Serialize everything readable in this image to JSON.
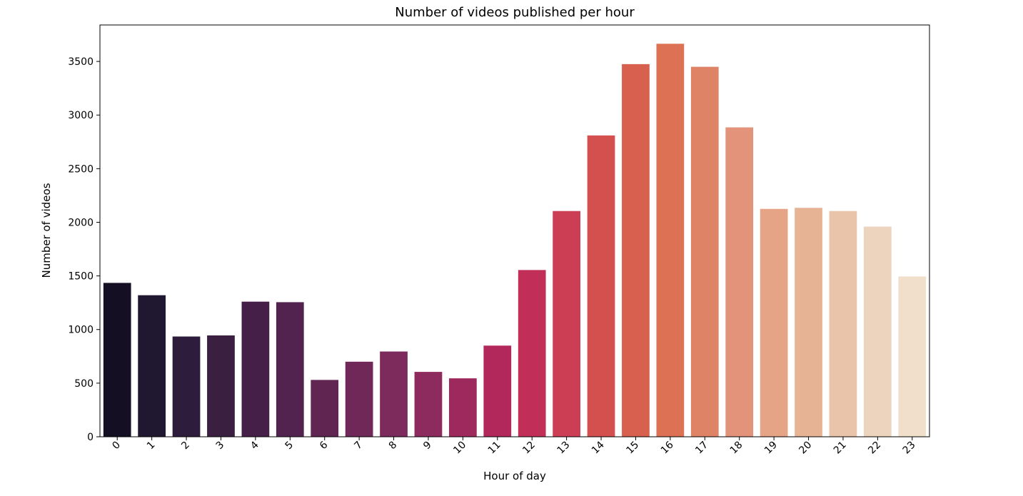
{
  "chart_data": {
    "type": "bar",
    "title": "Number of videos published per hour",
    "xlabel": "Hour of day",
    "ylabel": "Number of videos",
    "categories": [
      "0",
      "1",
      "2",
      "3",
      "4",
      "5",
      "6",
      "7",
      "8",
      "9",
      "10",
      "11",
      "12",
      "13",
      "14",
      "15",
      "16",
      "17",
      "18",
      "19",
      "20",
      "21",
      "22",
      "23"
    ],
    "values": [
      1435,
      1320,
      935,
      945,
      1260,
      1255,
      530,
      700,
      795,
      605,
      545,
      850,
      1555,
      2105,
      2810,
      3475,
      3665,
      3450,
      2885,
      2125,
      2135,
      2105,
      1960,
      1495
    ],
    "ylim": [
      0,
      3840
    ],
    "yticks": [
      0,
      500,
      1000,
      1500,
      2000,
      2500,
      3000,
      3500
    ],
    "ytick_labels": [
      "0",
      "500",
      "1000",
      "1500",
      "2000",
      "2500",
      "3000",
      "3500"
    ],
    "grid": false,
    "legend": "none",
    "colors": [
      "#150f24",
      "#201730",
      "#2e1c3c",
      "#3a1f41",
      "#461f48",
      "#532350",
      "#612551",
      "#6f2857",
      "#7d2a5c",
      "#8d2a5e",
      "#9d295d",
      "#b2285b",
      "#c12f58",
      "#cc3e54",
      "#d3504f",
      "#d7604e",
      "#dc7154",
      "#df8366",
      "#e3937a",
      "#e6a486",
      "#e7b395",
      "#eac4aa",
      "#edd4be",
      "#f2dfcb"
    ]
  }
}
